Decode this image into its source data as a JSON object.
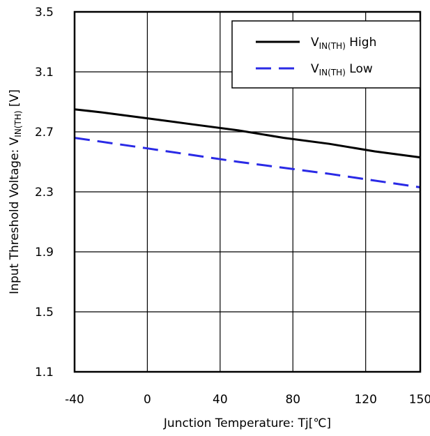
{
  "chart_data": {
    "type": "line",
    "xlabel": "Junction Temperature: Tj[℃]",
    "ylabel": {
      "main": "Input Threshold Voltage: V",
      "sub": "IN(TH)",
      "unit": " [V]"
    },
    "xlim": [
      -40,
      150
    ],
    "ylim": [
      1.1,
      3.5
    ],
    "xticks": [
      -40,
      0,
      40,
      80,
      120,
      150
    ],
    "xtick_labels": [
      "-40",
      "0",
      "40",
      "80",
      "120",
      "150"
    ],
    "yticks": [
      1.1,
      1.5,
      1.9,
      2.3,
      2.7,
      3.1,
      3.5
    ],
    "ytick_labels": [
      "1.1",
      "1.5",
      "1.9",
      "2.3",
      "2.7",
      "3.1",
      "3.5"
    ],
    "grid": true,
    "legend_position": "top-right",
    "series": [
      {
        "name": "VIN(TH) High",
        "legend": {
          "main": "V",
          "sub": "IN(TH)",
          "suffix": " High"
        },
        "style": "solid",
        "color": "#000000",
        "x": [
          -40,
          -25,
          0,
          25,
          50,
          75,
          100,
          125,
          150
        ],
        "y": [
          2.85,
          2.83,
          2.79,
          2.75,
          2.71,
          2.66,
          2.62,
          2.57,
          2.53
        ]
      },
      {
        "name": "VIN(TH) Low",
        "legend": {
          "main": "V",
          "sub": "IN(TH)",
          "suffix": " Low"
        },
        "style": "dashed",
        "color": "#2a2ae6",
        "x": [
          -40,
          0,
          50,
          100,
          150
        ],
        "y": [
          2.66,
          2.59,
          2.5,
          2.42,
          2.33
        ]
      }
    ]
  }
}
